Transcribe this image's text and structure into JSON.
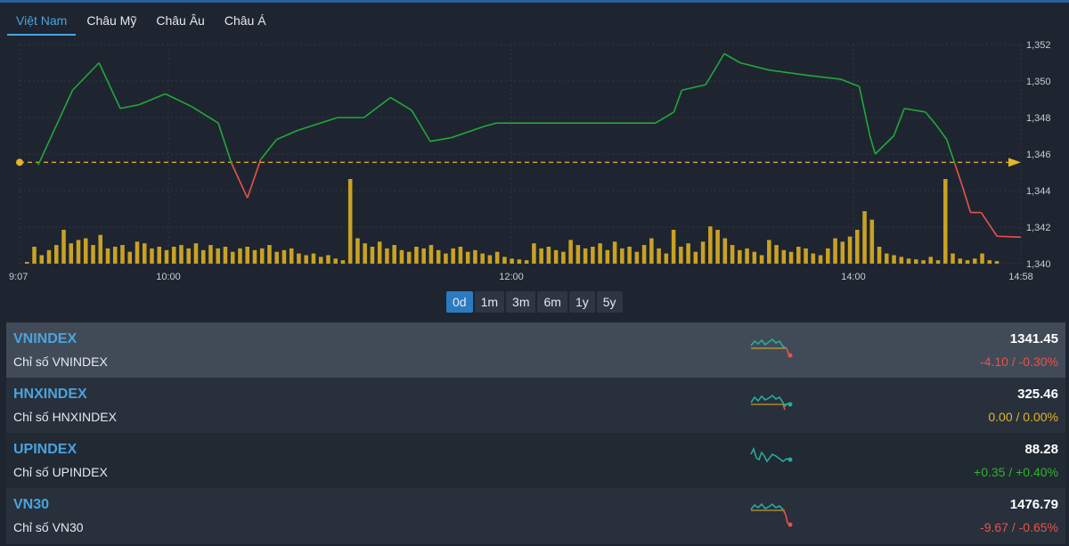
{
  "tabs": [
    {
      "label": "Việt Nam",
      "active": true
    },
    {
      "label": "Châu Mỹ",
      "active": false
    },
    {
      "label": "Châu Âu",
      "active": false
    },
    {
      "label": "Châu Á",
      "active": false
    }
  ],
  "chart_data": {
    "type": "line",
    "series": [
      {
        "values": [
          [
            547,
            1345.4
          ],
          [
            560,
            1349.5
          ],
          [
            570,
            1351.0
          ],
          [
            578,
            1348.5
          ],
          [
            585,
            1348.7
          ],
          [
            595,
            1349.3
          ],
          [
            605,
            1348.6
          ],
          [
            615,
            1347.7
          ],
          [
            620,
            1345.5
          ],
          [
            626,
            1343.6
          ],
          [
            631,
            1345.7
          ],
          [
            637,
            1346.8
          ],
          [
            645,
            1347.3
          ],
          [
            660,
            1348.0
          ],
          [
            670,
            1348.0
          ],
          [
            680,
            1349.1
          ],
          [
            688,
            1348.4
          ],
          [
            695,
            1346.7
          ],
          [
            703,
            1346.9
          ],
          [
            715,
            1347.5
          ],
          [
            720,
            1347.7
          ],
          [
            780,
            1347.7
          ],
          [
            787,
            1348.3
          ],
          [
            790,
            1349.5
          ],
          [
            799,
            1349.8
          ],
          [
            806,
            1351.5
          ],
          [
            812,
            1351.0
          ],
          [
            823,
            1350.6
          ],
          [
            838,
            1350.3
          ],
          [
            850,
            1350.1
          ],
          [
            857,
            1349.7
          ],
          [
            861,
            1347.0
          ],
          [
            863,
            1346.0
          ],
          [
            870,
            1347.0
          ],
          [
            874,
            1348.5
          ],
          [
            882,
            1348.3
          ],
          [
            886,
            1347.6
          ],
          [
            890,
            1346.8
          ],
          [
            893,
            1345.5
          ],
          [
            896,
            1344.2
          ],
          [
            899,
            1342.8
          ],
          [
            903,
            1342.8
          ],
          [
            909,
            1341.5
          ],
          [
            918,
            1341.45
          ]
        ]
      }
    ],
    "volume": [
      2,
      20,
      10,
      16,
      22,
      40,
      24,
      28,
      30,
      22,
      34,
      18,
      20,
      22,
      14,
      26,
      24,
      18,
      20,
      16,
      20,
      22,
      18,
      24,
      16,
      22,
      18,
      20,
      14,
      18,
      20,
      16,
      18,
      22,
      14,
      16,
      18,
      12,
      10,
      12,
      8,
      10,
      6,
      4,
      100,
      30,
      24,
      20,
      26,
      18,
      22,
      16,
      14,
      20,
      18,
      22,
      16,
      12,
      18,
      20,
      14,
      16,
      12,
      10,
      14,
      8,
      6,
      5,
      4,
      24,
      18,
      20,
      16,
      14,
      28,
      22,
      18,
      20,
      24,
      16,
      26,
      18,
      20,
      14,
      22,
      30,
      18,
      12,
      40,
      20,
      24,
      14,
      26,
      44,
      40,
      30,
      22,
      16,
      18,
      14,
      10,
      28,
      22,
      16,
      14,
      20,
      18,
      12,
      10,
      18,
      30,
      26,
      32,
      40,
      62,
      52,
      20,
      12,
      10,
      8,
      6,
      5,
      4,
      8,
      4,
      100,
      12,
      6,
      4,
      6,
      12,
      4,
      3
    ],
    "reference": 1345.55,
    "ylim": [
      1340,
      1352
    ],
    "y_ticks": [
      "1,340",
      "1,342",
      "1,344",
      "1,346",
      "1,348",
      "1,350",
      "1,352"
    ],
    "x_ticks": [
      "9:07",
      "10:00",
      "12:00",
      "14:00",
      "14:58"
    ],
    "colors": {
      "up": "#22a83a",
      "down": "#e8524a",
      "ref": "#e5b52a",
      "volume": "#c9a224"
    }
  },
  "ranges": [
    {
      "label": "0d",
      "active": true
    },
    {
      "label": "1m",
      "active": false
    },
    {
      "label": "3m",
      "active": false
    },
    {
      "label": "6m",
      "active": false
    },
    {
      "label": "1y",
      "active": false
    },
    {
      "label": "5y",
      "active": false
    }
  ],
  "indices": [
    {
      "symbol": "VNINDEX",
      "name": "Chỉ số VNINDEX",
      "price": "1341.45",
      "change": "-4.10 / -0.30%",
      "dir": "down"
    },
    {
      "symbol": "HNXINDEX",
      "name": "Chỉ số HNXINDEX",
      "price": "325.46",
      "change": "0.00 / 0.00%",
      "dir": "flat"
    },
    {
      "symbol": "UPINDEX",
      "name": "Chỉ số UPINDEX",
      "price": "88.28",
      "change": "+0.35 / +0.40%",
      "dir": "up"
    },
    {
      "symbol": "VN30",
      "name": "Chỉ số VN30",
      "price": "1476.79",
      "change": "-9.67 / -0.65%",
      "dir": "down"
    }
  ]
}
